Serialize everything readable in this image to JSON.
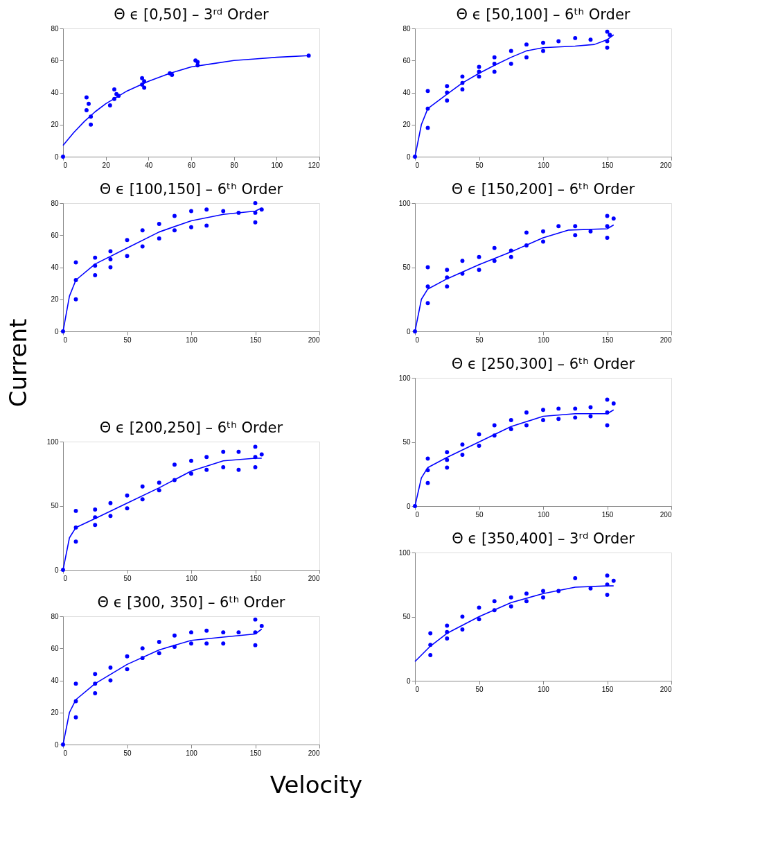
{
  "chart_data": [
    {
      "type": "scatter",
      "title": "Θ ϵ [0,50] – 3ʳᵈ Order",
      "xlim": [
        0,
        120
      ],
      "xticks": [
        0,
        20,
        40,
        60,
        80,
        100,
        120
      ],
      "ylim": [
        0,
        80
      ],
      "yticks": [
        0,
        20,
        40,
        60,
        80
      ],
      "grid": false,
      "series": [
        {
          "marker": "circle",
          "color": "#0000ff",
          "x": [
            0,
            11,
            11,
            12,
            13,
            13,
            22,
            24,
            24,
            25,
            26,
            37,
            37,
            38,
            38,
            50,
            51,
            62,
            63,
            63,
            115
          ],
          "values": [
            0,
            37,
            29,
            33,
            20,
            25,
            32,
            42,
            36,
            39,
            38,
            49,
            45,
            47,
            43,
            52,
            51,
            60,
            59,
            57,
            63
          ]
        },
        {
          "type": "line",
          "marker": "none",
          "line_style": "solid",
          "color": "#0000ff",
          "x": [
            0,
            5,
            10,
            15,
            20,
            30,
            40,
            50,
            60,
            70,
            80,
            90,
            100,
            115
          ],
          "values": [
            7,
            15,
            22,
            28,
            33,
            41,
            47,
            52,
            56,
            58,
            60,
            61,
            62,
            63
          ]
        }
      ]
    },
    {
      "type": "scatter",
      "title": "Θ ϵ [50,100] – 6ᵗʰ Order",
      "xlim": [
        0,
        200
      ],
      "xticks": [
        0,
        50,
        100,
        150,
        200
      ],
      "ylim": [
        0,
        80
      ],
      "yticks": [
        0,
        20,
        40,
        60,
        80
      ],
      "grid": false,
      "series": [
        {
          "marker": "circle",
          "color": "#0000ff",
          "x": [
            0,
            10,
            10,
            10,
            25,
            25,
            25,
            37,
            37,
            37,
            50,
            50,
            50,
            62,
            62,
            62,
            75,
            75,
            87,
            87,
            100,
            100,
            112,
            125,
            137,
            150,
            150,
            150,
            152
          ],
          "values": [
            0,
            18,
            30,
            41,
            35,
            40,
            44,
            42,
            46,
            50,
            50,
            53,
            56,
            53,
            58,
            62,
            58,
            66,
            62,
            70,
            66,
            71,
            72,
            74,
            73,
            68,
            72,
            78,
            76
          ]
        },
        {
          "type": "line",
          "marker": "none",
          "line_style": "solid",
          "color": "#0000ff",
          "x": [
            0,
            5,
            10,
            25,
            37,
            50,
            62,
            75,
            87,
            100,
            125,
            140,
            150,
            155
          ],
          "values": [
            0,
            20,
            30,
            39,
            46,
            52,
            57,
            62,
            66,
            68,
            69,
            70,
            73,
            76
          ]
        }
      ]
    },
    {
      "type": "scatter",
      "title": "Θ ϵ [100,150] – 6ᵗʰ Order",
      "ylabel": "Current",
      "xlim": [
        0,
        200
      ],
      "xticks": [
        0,
        50,
        100,
        150,
        200
      ],
      "ylim": [
        0,
        80
      ],
      "yticks": [
        0,
        20,
        40,
        60,
        80
      ],
      "grid": false,
      "series": [
        {
          "marker": "circle",
          "color": "#0000ff",
          "x": [
            0,
            10,
            10,
            10,
            25,
            25,
            25,
            37,
            37,
            37,
            50,
            50,
            62,
            62,
            75,
            75,
            87,
            87,
            100,
            100,
            112,
            112,
            125,
            137,
            150,
            150,
            150,
            155
          ],
          "values": [
            0,
            20,
            32,
            43,
            35,
            41,
            46,
            40,
            45,
            50,
            47,
            57,
            53,
            63,
            58,
            67,
            63,
            72,
            65,
            75,
            66,
            76,
            75,
            74,
            68,
            74,
            80,
            76
          ]
        },
        {
          "type": "line",
          "marker": "none",
          "line_style": "solid",
          "color": "#0000ff",
          "x": [
            0,
            5,
            10,
            25,
            50,
            75,
            100,
            125,
            150,
            155
          ],
          "values": [
            0,
            22,
            32,
            42,
            52,
            62,
            69,
            73,
            75,
            77
          ]
        }
      ]
    },
    {
      "type": "scatter",
      "title": "Θ ϵ [150,200] – 6ᵗʰ Order",
      "xlim": [
        0,
        200
      ],
      "xticks": [
        0,
        50,
        100,
        150,
        200
      ],
      "ylim": [
        0,
        100
      ],
      "yticks": [
        0,
        50,
        100
      ],
      "grid": false,
      "series": [
        {
          "marker": "circle",
          "color": "#0000ff",
          "x": [
            0,
            10,
            10,
            10,
            25,
            25,
            25,
            37,
            37,
            50,
            50,
            62,
            62,
            75,
            75,
            87,
            87,
            100,
            100,
            112,
            125,
            125,
            137,
            150,
            150,
            150,
            155
          ],
          "values": [
            0,
            22,
            35,
            50,
            35,
            42,
            48,
            45,
            55,
            48,
            58,
            55,
            65,
            58,
            63,
            67,
            77,
            70,
            78,
            82,
            75,
            82,
            78,
            73,
            82,
            90,
            88
          ]
        },
        {
          "type": "line",
          "marker": "none",
          "line_style": "solid",
          "color": "#0000ff",
          "x": [
            0,
            5,
            10,
            25,
            50,
            75,
            100,
            120,
            150,
            155
          ],
          "values": [
            0,
            25,
            33,
            41,
            52,
            62,
            73,
            79,
            80,
            83
          ]
        }
      ]
    },
    {
      "type": "scatter",
      "title": "Θ ϵ [200,250] – 6ᵗʰ Order",
      "xlim": [
        0,
        200
      ],
      "xticks": [
        0,
        50,
        100,
        150,
        200
      ],
      "ylim": [
        0,
        100
      ],
      "yticks": [
        0,
        50,
        100
      ],
      "grid": false,
      "series": [
        {
          "marker": "circle",
          "color": "#0000ff",
          "x": [
            0,
            10,
            10,
            10,
            25,
            25,
            25,
            37,
            37,
            50,
            50,
            62,
            62,
            75,
            75,
            87,
            87,
            100,
            100,
            112,
            112,
            125,
            125,
            137,
            137,
            150,
            150,
            150,
            155
          ],
          "values": [
            0,
            22,
            33,
            46,
            35,
            41,
            47,
            42,
            52,
            48,
            58,
            55,
            65,
            62,
            68,
            70,
            82,
            75,
            85,
            78,
            88,
            80,
            92,
            78,
            92,
            80,
            88,
            96,
            90
          ]
        },
        {
          "type": "line",
          "marker": "none",
          "line_style": "solid",
          "color": "#0000ff",
          "x": [
            0,
            5,
            10,
            25,
            50,
            75,
            100,
            125,
            150,
            155
          ],
          "values": [
            0,
            25,
            33,
            40,
            52,
            64,
            77,
            85,
            87,
            87
          ]
        }
      ]
    },
    {
      "type": "scatter",
      "title": "Θ ϵ [250,300] – 6ᵗʰ Order",
      "xlim": [
        0,
        200
      ],
      "xticks": [
        0,
        50,
        100,
        150,
        200
      ],
      "ylim": [
        0,
        100
      ],
      "yticks": [
        0,
        50,
        100
      ],
      "grid": false,
      "series": [
        {
          "marker": "circle",
          "color": "#0000ff",
          "x": [
            0,
            10,
            10,
            10,
            25,
            25,
            25,
            37,
            37,
            50,
            50,
            62,
            62,
            75,
            75,
            87,
            87,
            100,
            100,
            112,
            112,
            125,
            125,
            137,
            137,
            150,
            150,
            150,
            155
          ],
          "values": [
            0,
            18,
            28,
            37,
            30,
            36,
            42,
            40,
            48,
            47,
            56,
            55,
            63,
            60,
            67,
            63,
            73,
            67,
            75,
            68,
            76,
            69,
            76,
            70,
            77,
            63,
            73,
            83,
            80
          ]
        },
        {
          "type": "line",
          "marker": "none",
          "line_style": "solid",
          "color": "#0000ff",
          "x": [
            0,
            5,
            10,
            25,
            50,
            75,
            100,
            125,
            150,
            155
          ],
          "values": [
            0,
            22,
            30,
            38,
            50,
            62,
            70,
            72,
            72,
            75
          ]
        }
      ]
    },
    {
      "type": "scatter",
      "title": "Θ ϵ [300, 350] – 6ᵗʰ Order",
      "xlabel": "Velocity",
      "xlim": [
        0,
        200
      ],
      "xticks": [
        0,
        50,
        100,
        150,
        200
      ],
      "ylim": [
        0,
        80
      ],
      "yticks": [
        0,
        20,
        40,
        60,
        80
      ],
      "grid": false,
      "series": [
        {
          "marker": "circle",
          "color": "#0000ff",
          "x": [
            0,
            10,
            10,
            10,
            25,
            25,
            25,
            37,
            37,
            50,
            50,
            62,
            62,
            75,
            75,
            87,
            87,
            100,
            100,
            112,
            112,
            125,
            125,
            137,
            150,
            150,
            150,
            155
          ],
          "values": [
            0,
            17,
            27,
            38,
            32,
            38,
            44,
            40,
            48,
            47,
            55,
            54,
            60,
            57,
            64,
            61,
            68,
            63,
            70,
            63,
            71,
            63,
            70,
            70,
            62,
            70,
            78,
            74
          ]
        },
        {
          "type": "line",
          "marker": "none",
          "line_style": "solid",
          "color": "#0000ff",
          "x": [
            0,
            5,
            10,
            25,
            50,
            75,
            100,
            125,
            150,
            155
          ],
          "values": [
            0,
            20,
            28,
            38,
            50,
            59,
            65,
            67,
            69,
            72
          ]
        }
      ]
    },
    {
      "type": "scatter",
      "title": "Θ ϵ [350,400] – 3ʳᵈ Order",
      "xlim": [
        0,
        200
      ],
      "xticks": [
        0,
        50,
        100,
        150,
        200
      ],
      "ylim": [
        0,
        100
      ],
      "yticks": [
        0,
        50,
        100
      ],
      "grid": false,
      "series": [
        {
          "marker": "circle",
          "color": "#0000ff",
          "x": [
            12,
            12,
            12,
            25,
            25,
            25,
            37,
            37,
            50,
            50,
            62,
            62,
            75,
            75,
            87,
            87,
            100,
            100,
            112,
            125,
            137,
            150,
            150,
            150,
            155
          ],
          "values": [
            20,
            28,
            37,
            33,
            38,
            43,
            40,
            50,
            48,
            57,
            55,
            62,
            58,
            65,
            62,
            68,
            65,
            70,
            70,
            80,
            72,
            67,
            75,
            82,
            78
          ]
        },
        {
          "type": "line",
          "marker": "none",
          "line_style": "solid",
          "color": "#0000ff",
          "x": [
            0,
            12,
            25,
            50,
            75,
            100,
            125,
            150,
            155
          ],
          "values": [
            15,
            27,
            37,
            50,
            61,
            68,
            73,
            74,
            74
          ]
        }
      ]
    }
  ]
}
